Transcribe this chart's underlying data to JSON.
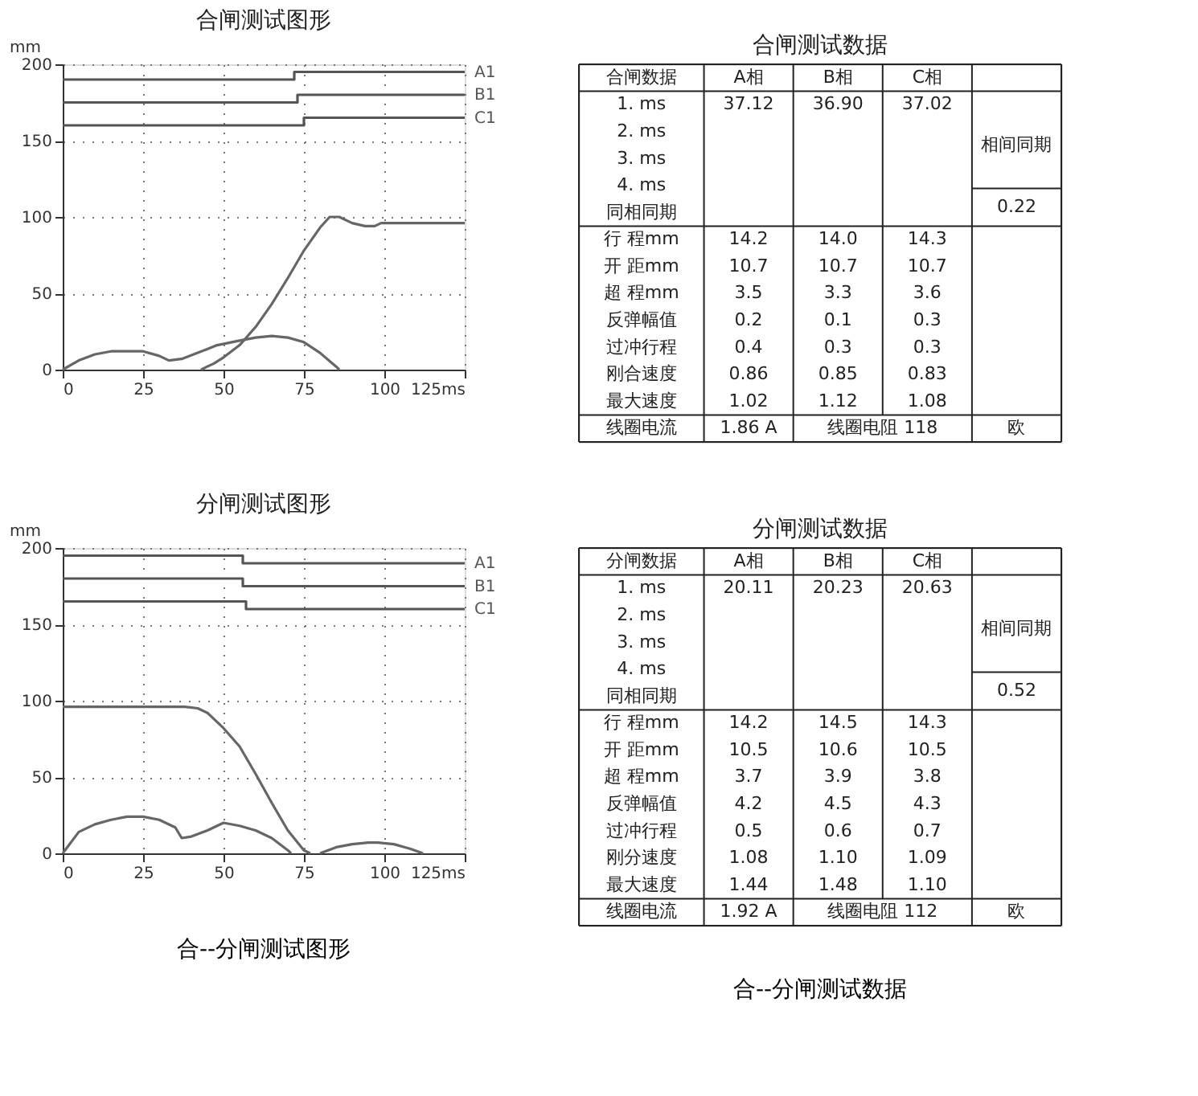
{
  "chart_data": [
    {
      "type": "line",
      "title": "合闸测试图形",
      "ylabel": "mm",
      "xlim": [
        0,
        125
      ],
      "ylim": [
        0,
        200
      ],
      "xticks": [
        0,
        25,
        50,
        75,
        100,
        {
          "value": 125,
          "label": "125ms"
        }
      ],
      "yticks": [
        0,
        50,
        100,
        150,
        200
      ],
      "grid": true,
      "series": [
        {
          "name": "A1",
          "type": "step",
          "color": "#555555",
          "x": [
            0,
            72,
            125
          ],
          "values": [
            190,
            195,
            195
          ]
        },
        {
          "name": "B1",
          "type": "step",
          "color": "#555555",
          "x": [
            0,
            73,
            125
          ],
          "values": [
            175,
            180,
            180
          ]
        },
        {
          "name": "C1",
          "type": "step",
          "color": "#555555",
          "x": [
            0,
            75,
            125
          ],
          "values": [
            160,
            165,
            165
          ]
        },
        {
          "color": "#666666",
          "x": [
            43,
            47,
            50,
            55,
            60,
            65,
            70,
            75,
            80,
            83,
            86,
            90,
            94,
            97,
            99,
            125
          ],
          "values": [
            0,
            4,
            8,
            16,
            28,
            43,
            60,
            78,
            93,
            100,
            100,
            96,
            94,
            94,
            96,
            96
          ]
        },
        {
          "color": "#666666",
          "x": [
            0,
            5,
            10,
            15,
            20,
            25,
            30,
            33,
            37,
            42,
            48,
            55,
            60,
            65,
            70,
            75,
            80,
            85,
            86
          ],
          "values": [
            0,
            6,
            10,
            12,
            12,
            12,
            9,
            6,
            7,
            11,
            16,
            19,
            21,
            22,
            21,
            18,
            11,
            2,
            0
          ]
        }
      ]
    },
    {
      "type": "other",
      "title": "合闸测试数据",
      "categories": [
        "合闸数据",
        "A相",
        "B相",
        "C相"
      ],
      "y_categories": [
        "1. ms",
        "2. ms",
        "3. ms",
        "4. ms",
        "同相同期",
        "行 程mm",
        "开 距mm",
        "超 程mm",
        "反弹幅值",
        "过冲行程",
        "刚合速度",
        "最大速度"
      ],
      "cell_labels": [
        [
          "37.12",
          "36.90",
          "37.02"
        ],
        [
          null,
          null,
          null
        ],
        [
          null,
          null,
          null
        ],
        [
          null,
          null,
          null
        ],
        [
          null,
          null,
          null
        ],
        [
          "14.2",
          "14.0",
          "14.3"
        ],
        [
          "10.7",
          "10.7",
          "10.7"
        ],
        [
          "3.5",
          "3.3",
          "3.6"
        ],
        [
          "0.2",
          "0.1",
          "0.3"
        ],
        [
          "0.4",
          "0.3",
          "0.3"
        ],
        [
          "0.86",
          "0.85",
          "0.83"
        ],
        [
          "1.02",
          "1.12",
          "1.08"
        ]
      ],
      "annotations": [
        "相间同期",
        "0.22",
        "线圈电流",
        "1.86 A",
        "线圈电阻 118",
        "欧"
      ]
    },
    {
      "type": "line",
      "title": "分闸测试图形",
      "ylabel": "mm",
      "xlim": [
        0,
        125
      ],
      "ylim": [
        0,
        200
      ],
      "xticks": [
        0,
        25,
        50,
        75,
        100,
        {
          "value": 125,
          "label": "125ms"
        }
      ],
      "yticks": [
        0,
        50,
        100,
        150,
        200
      ],
      "grid": true,
      "annotations": [
        "合--分闸测试图形"
      ],
      "series": [
        {
          "name": "A1",
          "type": "step",
          "color": "#555555",
          "x": [
            0,
            56,
            125
          ],
          "values": [
            195,
            190,
            190
          ]
        },
        {
          "name": "B1",
          "type": "step",
          "color": "#555555",
          "x": [
            0,
            56,
            125
          ],
          "values": [
            180,
            175,
            175
          ]
        },
        {
          "name": "C1",
          "type": "step",
          "color": "#555555",
          "x": [
            0,
            57,
            125
          ],
          "values": [
            165,
            160,
            160
          ]
        },
        {
          "color": "#666666",
          "x": [
            0,
            38,
            42,
            45,
            50,
            55,
            60,
            65,
            70,
            75,
            77
          ],
          "values": [
            96,
            96,
            95,
            92,
            82,
            70,
            52,
            33,
            15,
            2,
            0
          ]
        },
        {
          "color": "#666666",
          "x": [
            0,
            5,
            10,
            15,
            20,
            25,
            30,
            35,
            37,
            40,
            45,
            50,
            55,
            60,
            65,
            70,
            71,
            75,
            80,
            85,
            90,
            95,
            98,
            103,
            108,
            112
          ],
          "values": [
            0,
            14,
            19,
            22,
            24,
            24,
            22,
            17,
            10,
            11,
            15,
            20,
            18,
            15,
            10,
            2,
            0,
            null,
            0,
            4,
            6,
            7,
            7,
            6,
            3,
            0
          ]
        }
      ]
    },
    {
      "type": "other",
      "title": "分闸测试数据",
      "categories": [
        "分闸数据",
        "A相",
        "B相",
        "C相"
      ],
      "y_categories": [
        "1. ms",
        "2. ms",
        "3. ms",
        "4. ms",
        "同相同期",
        "行 程mm",
        "开 距mm",
        "超 程mm",
        "反弹幅值",
        "过冲行程",
        "刚分速度",
        "最大速度"
      ],
      "cell_labels": [
        [
          "20.11",
          "20.23",
          "20.63"
        ],
        [
          null,
          null,
          null
        ],
        [
          null,
          null,
          null
        ],
        [
          null,
          null,
          null
        ],
        [
          null,
          null,
          null
        ],
        [
          "14.2",
          "14.5",
          "14.3"
        ],
        [
          "10.5",
          "10.6",
          "10.5"
        ],
        [
          "3.7",
          "3.9",
          "3.8"
        ],
        [
          "4.2",
          "4.5",
          "4.3"
        ],
        [
          "0.5",
          "0.6",
          "0.7"
        ],
        [
          "1.08",
          "1.10",
          "1.09"
        ],
        [
          "1.44",
          "1.48",
          "1.10"
        ]
      ],
      "annotations": [
        "相间同期",
        "0.52",
        "线圈电流",
        "1.92 A",
        "线圈电阻 112",
        "欧",
        "合--分闸测试数据"
      ]
    }
  ]
}
